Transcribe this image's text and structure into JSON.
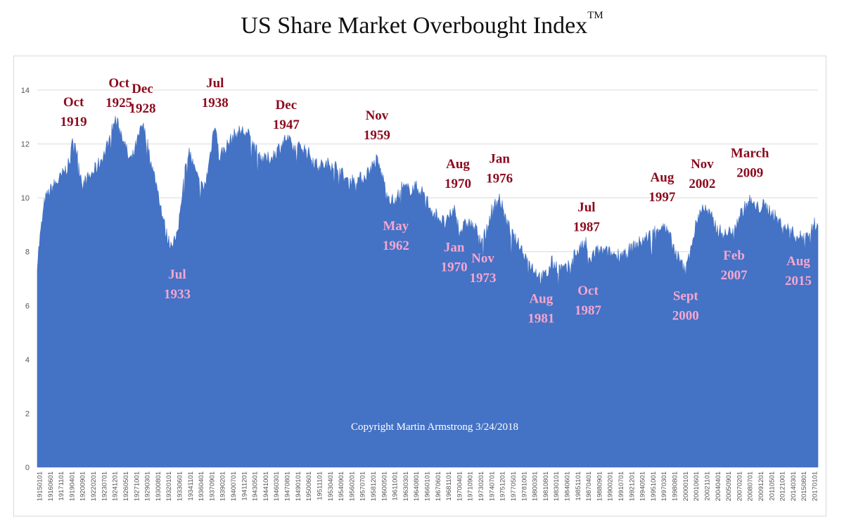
{
  "chart_data": {
    "type": "area",
    "title": "US Share Market Overbought Index",
    "title_mark": "TM",
    "color": "#4472c4",
    "grid": true,
    "ylim": [
      0,
      14
    ],
    "yticks": [
      0,
      2,
      4,
      6,
      8,
      10,
      12,
      14
    ],
    "xticks": [
      "19150101",
      "19160601",
      "19171101",
      "19190401",
      "19200901",
      "19220201",
      "19230701",
      "19241201",
      "19260501",
      "19271001",
      "19290301",
      "19300801",
      "19320101",
      "19330601",
      "19341101",
      "19360401",
      "19370901",
      "19390201",
      "19400701",
      "19411201",
      "19430501",
      "19441001",
      "19460301",
      "19470801",
      "19490101",
      "19500601",
      "19511101",
      "19530401",
      "19540901",
      "19560201",
      "19570701",
      "19581201",
      "19600501",
      "19611001",
      "19630301",
      "19640801",
      "19660101",
      "19670601",
      "19681101",
      "19700401",
      "19710901",
      "19730201",
      "19740701",
      "19751201",
      "19770501",
      "19781001",
      "19800301",
      "19810801",
      "19830101",
      "19840601",
      "19851101",
      "19870401",
      "19880901",
      "19900201",
      "19910701",
      "19921201",
      "19940501",
      "19951001",
      "19970301",
      "19980801",
      "20000101",
      "20010601",
      "20021101",
      "20040401",
      "20050901",
      "20070201",
      "20080701",
      "20091201",
      "20110501",
      "20121001",
      "20140301",
      "20150801",
      "20170101"
    ],
    "x": [
      1915.0,
      1915.4,
      1916.0,
      1917.0,
      1918.0,
      1919.3,
      1919.8,
      1920.5,
      1921.0,
      1922.0,
      1923.0,
      1924.0,
      1925.3,
      1925.8,
      1926.5,
      1927.0,
      1927.5,
      1928.9,
      1929.5,
      1930.2,
      1931.0,
      1931.5,
      1932.0,
      1932.5,
      1933.5,
      1934.2,
      1935.0,
      1935.6,
      1936.3,
      1937.0,
      1937.5,
      1938.5,
      1939.0,
      1940.0,
      1941.0,
      1942.0,
      1943.0,
      1944.0,
      1945.0,
      1946.0,
      1947.9,
      1949.0,
      1950.0,
      1951.0,
      1952.0,
      1953.0,
      1954.0,
      1955.0,
      1956.0,
      1957.0,
      1958.0,
      1959.9,
      1960.7,
      1961.5,
      1962.4,
      1963.0,
      1964.0,
      1965.0,
      1966.0,
      1967.0,
      1968.0,
      1969.0,
      1970.1,
      1970.6,
      1971.0,
      1972.0,
      1973.9,
      1974.5,
      1975.0,
      1976.1,
      1977.0,
      1978.0,
      1979.0,
      1980.0,
      1981.6,
      1982.5,
      1983.0,
      1984.0,
      1985.0,
      1986.0,
      1987.6,
      1987.8,
      1988.5,
      1989.0,
      1990.0,
      1991.0,
      1992.0,
      1993.0,
      1994.0,
      1995.0,
      1996.0,
      1997.6,
      1998.5,
      1999.5,
      2000.7,
      2001.3,
      2002.0,
      2002.9,
      2004.0,
      2005.0,
      2006.0,
      2007.1,
      2008.0,
      2009.2,
      2010.0,
      2011.0,
      2012.0,
      2013.0,
      2014.0,
      2015.6,
      2016.5,
      2017.3,
      2018.2
    ],
    "values": [
      7.6,
      8.6,
      9.9,
      10.4,
      10.7,
      11.3,
      12.4,
      11.2,
      10.5,
      10.8,
      11.2,
      11.7,
      12.9,
      12.6,
      12.1,
      11.5,
      11.4,
      12.7,
      12.1,
      11.1,
      10.2,
      9.4,
      8.7,
      8.3,
      8.5,
      10.4,
      11.8,
      11.2,
      10.6,
      10.3,
      10.9,
      12.9,
      11.5,
      11.9,
      12.3,
      12.5,
      12.3,
      11.7,
      11.4,
      11.5,
      12.2,
      11.8,
      11.9,
      11.6,
      11.2,
      11.2,
      11.3,
      11.0,
      10.6,
      10.7,
      10.7,
      11.4,
      10.7,
      10.0,
      9.8,
      10.4,
      10.3,
      10.4,
      10.2,
      9.6,
      9.3,
      9.0,
      9.6,
      9.0,
      8.8,
      9.1,
      8.5,
      8.8,
      9.5,
      10.0,
      9.1,
      8.5,
      8.1,
      7.6,
      7.0,
      7.2,
      7.6,
      7.4,
      7.3,
      7.9,
      8.3,
      7.5,
      7.9,
      8.0,
      8.0,
      7.9,
      7.9,
      8.0,
      8.2,
      8.4,
      8.6,
      9.0,
      8.6,
      7.9,
      7.2,
      8.1,
      8.9,
      9.7,
      9.3,
      8.8,
      8.6,
      8.9,
      9.4,
      9.9,
      9.6,
      9.7,
      9.5,
      9.1,
      8.9,
      8.5,
      8.6,
      8.8,
      9.2
    ],
    "peak_labels": [
      {
        "month": "Oct",
        "year": "1919",
        "x": 1919.8,
        "yl": 13.4
      },
      {
        "month": "Oct",
        "year": "1925",
        "x": 1925.8,
        "yl": 14.1
      },
      {
        "month": "Dec",
        "year": "1928",
        "x": 1928.9,
        "yl": 13.9
      },
      {
        "month": "Jul",
        "year": "1938",
        "x": 1938.5,
        "yl": 14.1
      },
      {
        "month": "Dec",
        "year": "1947",
        "x": 1947.9,
        "yl": 13.3
      },
      {
        "month": "Nov",
        "year": "1959",
        "x": 1959.9,
        "yl": 12.9
      },
      {
        "month": "Aug",
        "year": "1970",
        "x": 1970.6,
        "yl": 11.1
      },
      {
        "month": "Jan",
        "year": "1976",
        "x": 1976.1,
        "yl": 11.3
      },
      {
        "month": "Jul",
        "year": "1987",
        "x": 1987.6,
        "yl": 9.5
      },
      {
        "month": "Aug",
        "year": "1997",
        "x": 1997.6,
        "yl": 10.6
      },
      {
        "month": "Nov",
        "year": "2002",
        "x": 2002.9,
        "yl": 11.1
      },
      {
        "month": "March",
        "year": "2009",
        "x": 2009.2,
        "yl": 11.5
      }
    ],
    "trough_labels": [
      {
        "month": "Jul",
        "year": "1933",
        "x": 1933.5,
        "yl": 7.0
      },
      {
        "month": "May",
        "year": "1962",
        "x": 1962.4,
        "yl": 8.8
      },
      {
        "month": "Jan",
        "year": "1970",
        "x": 1970.1,
        "yl": 8.0
      },
      {
        "month": "Nov",
        "year": "1973",
        "x": 1973.9,
        "yl": 7.6
      },
      {
        "month": "Aug",
        "year": "1981",
        "x": 1981.6,
        "yl": 6.1
      },
      {
        "month": "Oct",
        "year": "1987",
        "x": 1987.8,
        "yl": 6.4
      },
      {
        "month": "Sept",
        "year": "2000",
        "x": 2000.7,
        "yl": 6.2
      },
      {
        "month": "Feb",
        "year": "2007",
        "x": 2007.1,
        "yl": 7.7
      },
      {
        "month": "Aug",
        "year": "2015",
        "x": 2015.6,
        "yl": 7.5
      }
    ],
    "annotation": "Copyright Martin Armstrong 3/24/2018"
  }
}
